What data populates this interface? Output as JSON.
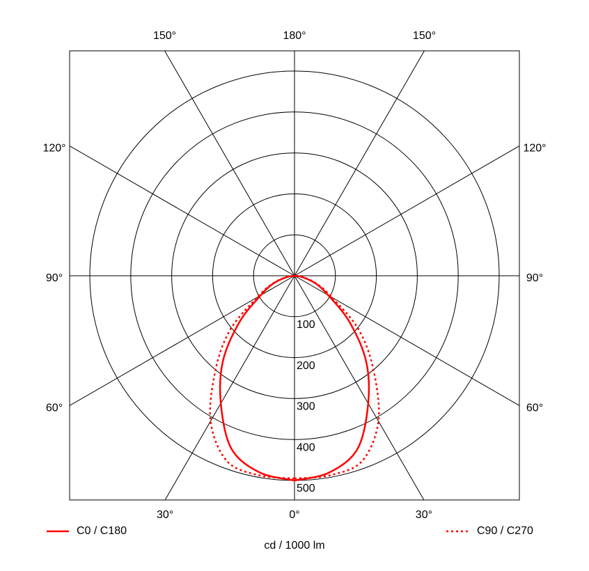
{
  "chart_data": {
    "type": "polar",
    "angle": [
      0,
      10,
      20,
      30,
      40,
      50,
      60,
      70,
      80,
      90
    ],
    "series": [
      {
        "name": "C0 / C180",
        "color": "#ff0000",
        "dash": "solid",
        "values": [
          500,
          488,
          450,
          360,
          272,
          175,
          95,
          55,
          20,
          0
        ]
      },
      {
        "name": "C90 / C270",
        "color": "#ff0000",
        "dash": "dotted",
        "values": [
          495,
          495,
          482,
          410,
          300,
          205,
          105,
          58,
          22,
          0
        ]
      }
    ],
    "rlim": [
      0,
      500
    ],
    "rticks": [
      100,
      200,
      300,
      400,
      500
    ],
    "angle_ticks": [
      {
        "value": 0,
        "label": "0°"
      },
      {
        "value": 30,
        "label": "30°"
      },
      {
        "value": 60,
        "label": "60°"
      },
      {
        "value": 90,
        "label": "90°"
      },
      {
        "value": 120,
        "label": "120°"
      },
      {
        "value": 150,
        "label": "150°"
      },
      {
        "value": 180,
        "label": "180°"
      }
    ],
    "unit_label": "cd / 1000 lm",
    "grid": true
  }
}
